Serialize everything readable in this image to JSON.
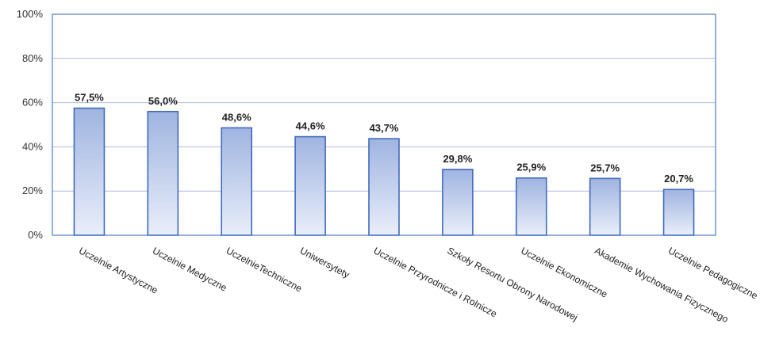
{
  "chart_data": {
    "type": "bar",
    "categories": [
      "Uczelnie  Artystyczne",
      "Uczelnie Medyczne",
      "UczelnieTechniczne",
      "Uniwersytety",
      "Uczelnie Przyrodnicze i  Rolnicze",
      "Szkoły Resortu Obrony Narodowej",
      "Uczelnie  Ekonomiczne",
      "Akademie Wychowania Fizycznego",
      "Uczelnie Pedagogiczne"
    ],
    "values": [
      57.5,
      56.0,
      48.6,
      44.6,
      43.7,
      29.8,
      25.9,
      25.7,
      20.7
    ],
    "value_labels": [
      "57,5%",
      "56,0%",
      "48,6%",
      "44,6%",
      "43,7%",
      "29,8%",
      "25,9%",
      "25,7%",
      "20,7%"
    ],
    "ylim": [
      0,
      100
    ],
    "yticks": [
      0,
      20,
      40,
      60,
      80,
      100
    ],
    "ytick_labels": [
      "0%",
      "20%",
      "40%",
      "60%",
      "80%",
      "100%"
    ],
    "grid": true,
    "legend": false,
    "colors": {
      "bar_top": "#9fb4e0",
      "bar_bottom": "#e9eefa",
      "bar_stroke": "#3f6bbd",
      "plot_border": "#4f7cc6",
      "grid": "#aabbe0"
    }
  }
}
